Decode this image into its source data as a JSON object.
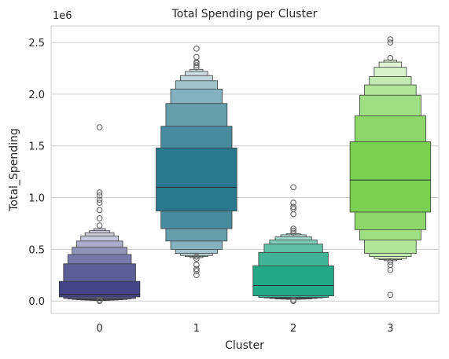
{
  "chart_data": {
    "type": "boxen",
    "title": "Total Spending per Cluster",
    "xlabel": "Cluster",
    "ylabel": "Total_Spending",
    "offset_label": "1e6",
    "ylim": [
      -0.12,
      2.66
    ],
    "yticks": [
      0.0,
      0.5,
      1.0,
      1.5,
      2.0,
      2.5
    ],
    "ytick_labels": [
      "0.0",
      "0.5",
      "1.0",
      "1.5",
      "2.0",
      "2.5"
    ],
    "grid": true,
    "categories": [
      "0",
      "1",
      "2",
      "3"
    ],
    "colors": [
      "#414487",
      "#2a788e",
      "#22a884",
      "#7ad151"
    ],
    "boxes": [
      {
        "median": 0.065,
        "levels": [
          [
            0.04,
            0.19
          ],
          [
            0.025,
            0.36
          ],
          [
            0.02,
            0.45
          ],
          [
            0.015,
            0.52
          ],
          [
            0.012,
            0.58
          ],
          [
            0.01,
            0.63
          ],
          [
            0.008,
            0.66
          ],
          [
            0.006,
            0.68
          ],
          [
            0.005,
            0.7
          ]
        ],
        "outliers": [
          1.68,
          1.05,
          1.02,
          0.98,
          0.95,
          0.88,
          0.8,
          0.73,
          0.0,
          0.01
        ]
      },
      {
        "median": 1.1,
        "levels": [
          [
            0.87,
            1.48
          ],
          [
            0.7,
            1.69
          ],
          [
            0.58,
            1.91
          ],
          [
            0.5,
            2.05
          ],
          [
            0.46,
            2.13
          ],
          [
            0.44,
            2.18
          ],
          [
            0.43,
            2.22
          ],
          [
            0.42,
            2.24
          ]
        ],
        "outliers": [
          2.44,
          2.36,
          2.31,
          2.3,
          2.28,
          2.26,
          0.43,
          0.41,
          0.35,
          0.31,
          0.29,
          0.25
        ]
      },
      {
        "median": 0.15,
        "levels": [
          [
            0.05,
            0.34
          ],
          [
            0.035,
            0.47
          ],
          [
            0.03,
            0.55
          ],
          [
            0.025,
            0.59
          ],
          [
            0.02,
            0.62
          ],
          [
            0.018,
            0.64
          ],
          [
            0.016,
            0.65
          ]
        ],
        "outliers": [
          1.1,
          0.95,
          0.91,
          0.89,
          0.84,
          0.7,
          0.68,
          0.66,
          0.01,
          0.0
        ]
      },
      {
        "median": 1.17,
        "levels": [
          [
            0.86,
            1.54
          ],
          [
            0.69,
            1.79
          ],
          [
            0.59,
            1.99
          ],
          [
            0.46,
            2.09
          ],
          [
            0.43,
            2.17
          ],
          [
            0.41,
            2.26
          ],
          [
            0.4,
            2.31
          ],
          [
            0.39,
            2.33
          ]
        ],
        "outliers": [
          2.53,
          2.5,
          2.35,
          0.38,
          0.35,
          0.3,
          0.06
        ]
      }
    ]
  }
}
